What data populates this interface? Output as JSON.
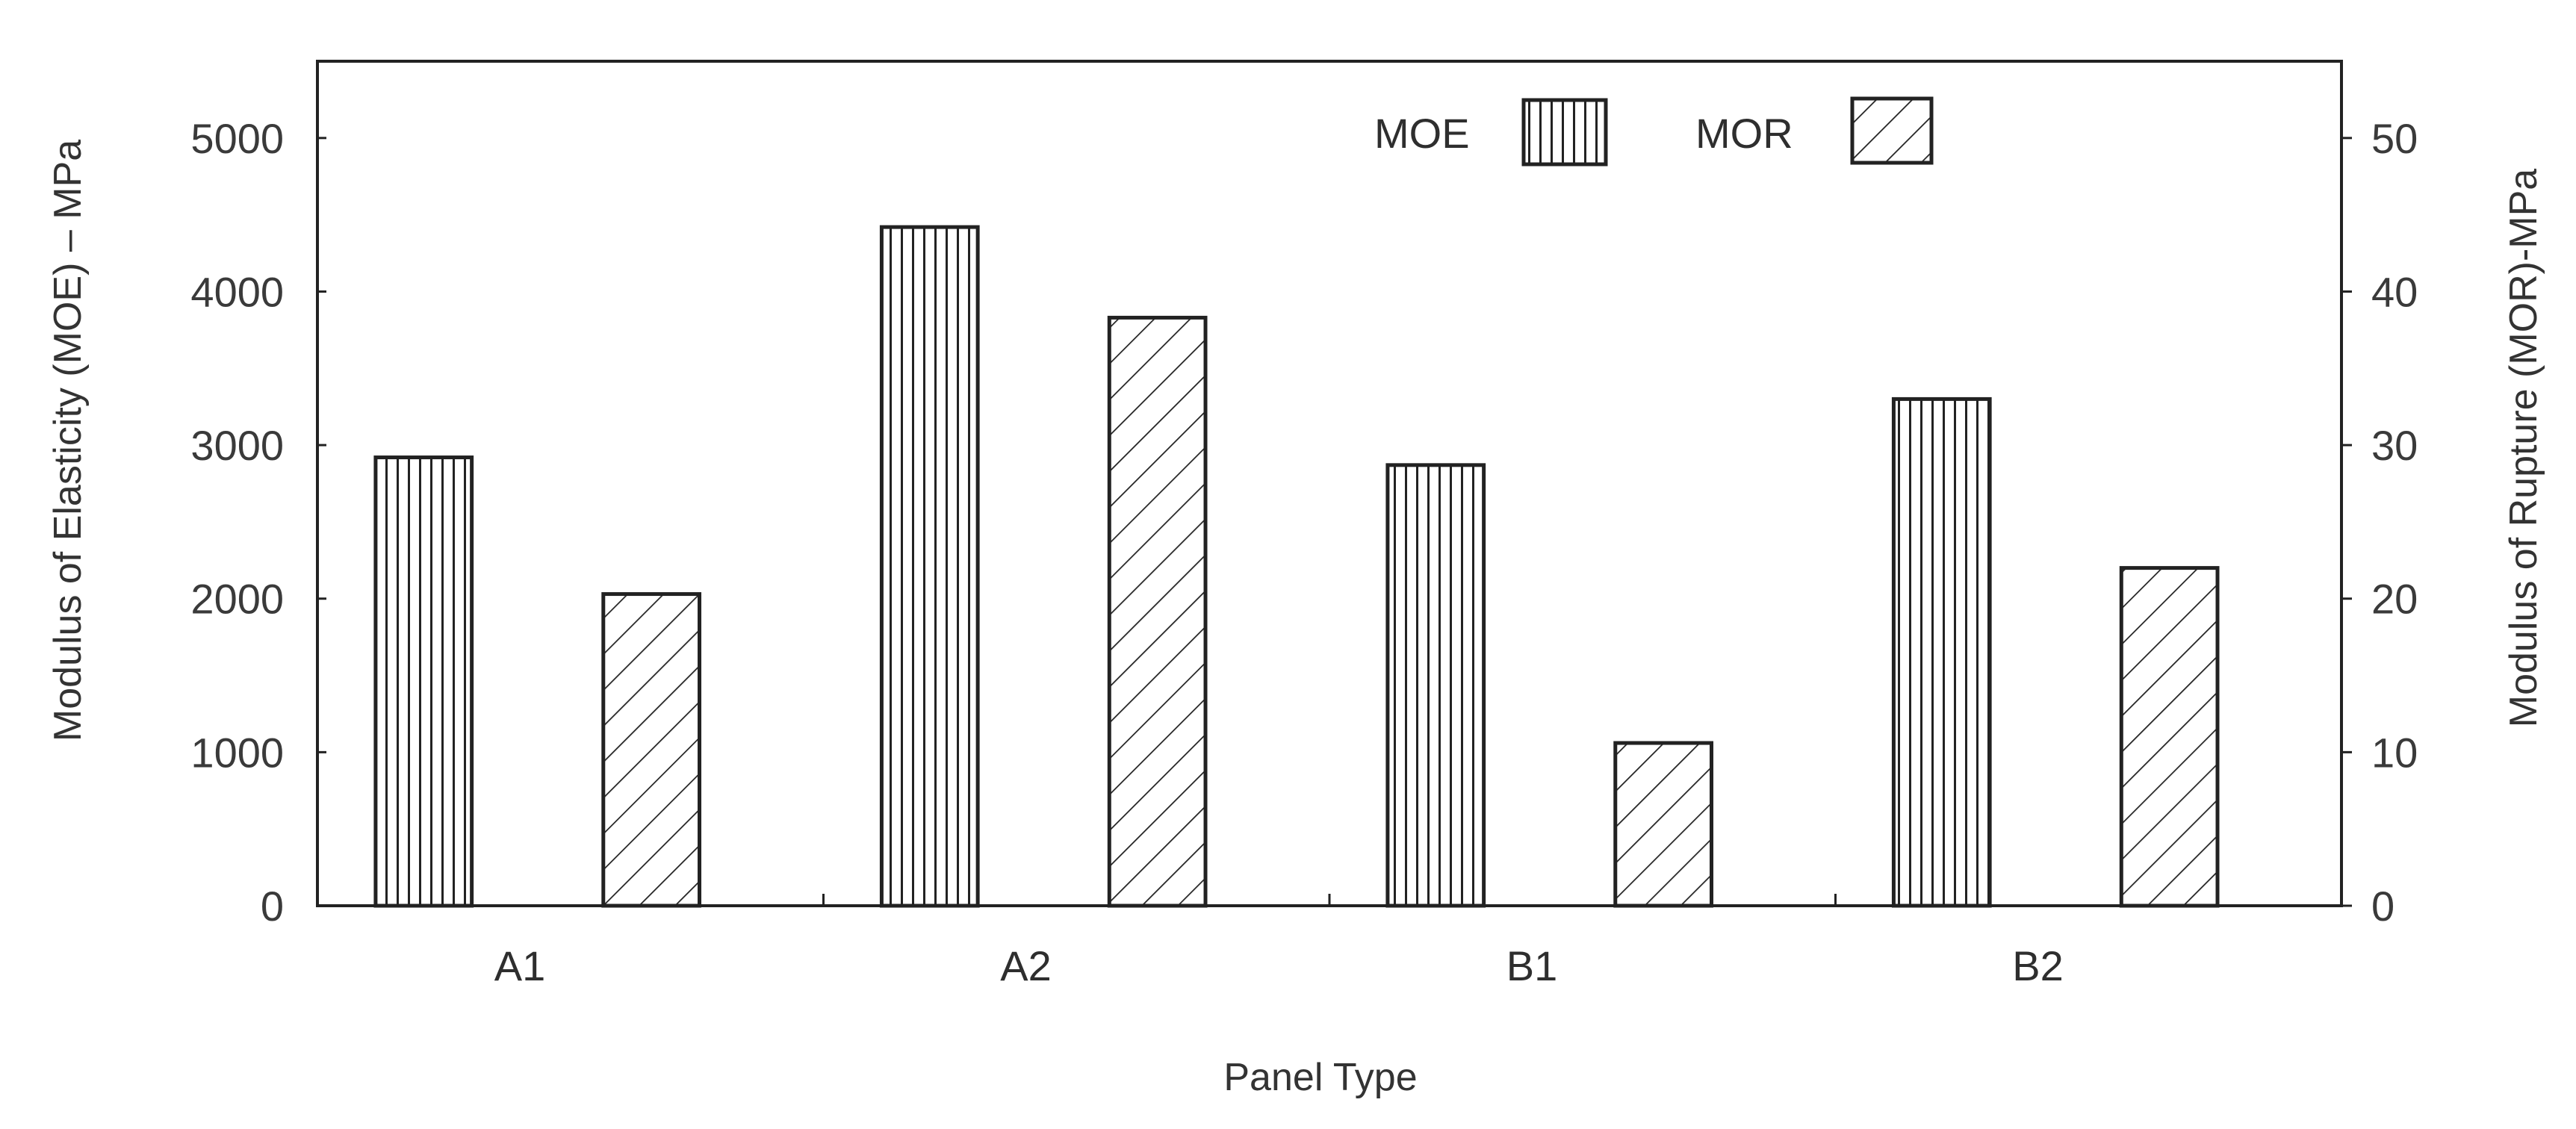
{
  "chart_data": {
    "type": "bar",
    "categories": [
      "A1",
      "A2",
      "B1",
      "B2"
    ],
    "series": [
      {
        "name": "MOE",
        "axis": "left",
        "pattern": "vertical-lines",
        "values": [
          2920,
          4420,
          2870,
          3300
        ]
      },
      {
        "name": "MOR",
        "axis": "right",
        "pattern": "diagonal-lines",
        "values": [
          20.3,
          38.3,
          10.6,
          22.0
        ]
      }
    ],
    "xlabel": "Panel Type",
    "ylabel": "Modulus of Elasticity (MOE) – MPa",
    "y2label": "Modulus of Rupture (MOR)-MPa",
    "ylim": [
      0,
      5500
    ],
    "y2lim": [
      0,
      55
    ],
    "yticks": [
      "0",
      "1000",
      "2000",
      "3000",
      "4000",
      "5000"
    ],
    "y2ticks": [
      "0",
      "10",
      "20",
      "30",
      "40",
      "50"
    ],
    "legend_position": "top-right",
    "grid": false,
    "colors": {
      "ink": "#222222",
      "background": "#ffffff"
    }
  }
}
